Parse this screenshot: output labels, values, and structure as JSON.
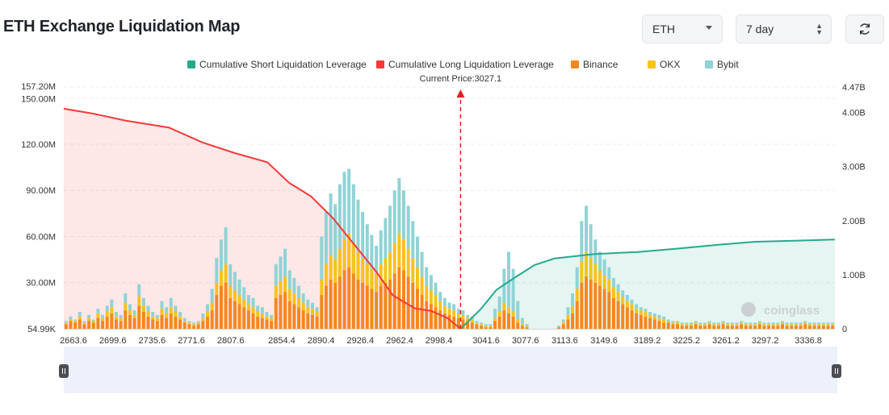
{
  "header": {
    "title": "ETH Exchange Liquidation Map",
    "asset_select": "ETH",
    "period_select": "7 day",
    "refresh_icon": "refresh-icon"
  },
  "chart_data": {
    "type": "bar",
    "current_price_label": "Current Price:3027.1",
    "current_price": 3027.1,
    "watermark": "coinglass",
    "legend": [
      {
        "name": "Cumulative Short Liquidation Leverage",
        "color": "#26a98b"
      },
      {
        "name": "Cumulative Long Liquidation Leverage",
        "color": "#f23a3a"
      },
      {
        "name": "Binance",
        "color": "#f7861e"
      },
      {
        "name": "OKX",
        "color": "#f7c21d"
      },
      {
        "name": "Bybit",
        "color": "#8fd3d6"
      }
    ],
    "x_tick_labels": [
      "2663.6",
      "2699.6",
      "2735.6",
      "2771.6",
      "2807.6",
      "2854.4",
      "2890.4",
      "2926.4",
      "2962.4",
      "2998.4",
      "3041.6",
      "3077.6",
      "3113.6",
      "3149.6",
      "3189.2",
      "3225.2",
      "3261.2",
      "3297.2",
      "3336.8"
    ],
    "xlim": [
      2663.6,
      3370
    ],
    "y_left_ticks": [
      "54.99K",
      "30.00M",
      "60.00M",
      "90.00M",
      "120.00M",
      "150.00M",
      "157.20M"
    ],
    "y_left_tick_values": [
      0,
      30,
      60,
      90,
      120,
      150,
      157.2
    ],
    "y_left_max": 157.2,
    "y_right_ticks": [
      "0",
      "1.00B",
      "2.00B",
      "3.00B",
      "4.00B",
      "4.47B"
    ],
    "y_right_tick_values": [
      0,
      1,
      2,
      3,
      4,
      4.47
    ],
    "y_right_max": 4.47,
    "series": [
      {
        "name": "Binance",
        "color": "#f7861e",
        "values": [
          3,
          5,
          4,
          6,
          3,
          5,
          4,
          7,
          5,
          8,
          10,
          6,
          5,
          12,
          9,
          7,
          15,
          11,
          8,
          6,
          5,
          9,
          7,
          10,
          8,
          6,
          4,
          3,
          2,
          3,
          5,
          8,
          12,
          22,
          28,
          30,
          20,
          18,
          16,
          14,
          12,
          10,
          8,
          7,
          6,
          5,
          20,
          22,
          24,
          18,
          16,
          14,
          12,
          10,
          9,
          8,
          22,
          28,
          32,
          30,
          34,
          38,
          40,
          36,
          32,
          30,
          28,
          26,
          24,
          28,
          30,
          32,
          36,
          40,
          38,
          34,
          30,
          26,
          22,
          18,
          16,
          14,
          12,
          10,
          9,
          8,
          7,
          6,
          5,
          4,
          3,
          2,
          1,
          1,
          5,
          8,
          12,
          10,
          8,
          4,
          2,
          1,
          0,
          0,
          0,
          0,
          0,
          0,
          1,
          3,
          6,
          10,
          18,
          30,
          34,
          32,
          30,
          28,
          26,
          24,
          20,
          18,
          16,
          14,
          12,
          10,
          9,
          8,
          7,
          6,
          5,
          4,
          4,
          3,
          3,
          2,
          2,
          2,
          3,
          2,
          2,
          3,
          2,
          2,
          3,
          2,
          2,
          2,
          3,
          2,
          2,
          2,
          3,
          2,
          2,
          2,
          2,
          3,
          2,
          2,
          2,
          2,
          3,
          2,
          2,
          2,
          2,
          2,
          2
        ]
      },
      {
        "name": "OKX",
        "color": "#f7c21d",
        "values": [
          1,
          1,
          1,
          2,
          1,
          2,
          1,
          3,
          2,
          3,
          4,
          2,
          2,
          5,
          3,
          2,
          6,
          4,
          3,
          2,
          2,
          4,
          3,
          4,
          3,
          2,
          1,
          1,
          1,
          1,
          2,
          3,
          5,
          8,
          10,
          12,
          8,
          7,
          6,
          5,
          4,
          4,
          3,
          3,
          2,
          2,
          8,
          9,
          10,
          8,
          7,
          6,
          5,
          4,
          4,
          3,
          10,
          14,
          16,
          15,
          18,
          20,
          22,
          20,
          18,
          16,
          14,
          13,
          12,
          14,
          16,
          18,
          20,
          22,
          20,
          18,
          16,
          14,
          12,
          10,
          9,
          8,
          6,
          5,
          4,
          4,
          3,
          3,
          2,
          2,
          1,
          1,
          1,
          1,
          2,
          3,
          5,
          4,
          3,
          2,
          1,
          1,
          0,
          0,
          0,
          0,
          0,
          0,
          0,
          1,
          3,
          5,
          8,
          14,
          16,
          14,
          12,
          10,
          9,
          8,
          7,
          6,
          5,
          4,
          4,
          3,
          3,
          3,
          2,
          2,
          2,
          2,
          1,
          1,
          1,
          1,
          1,
          1,
          1,
          1,
          1,
          1,
          1,
          1,
          1,
          1,
          1,
          1,
          1,
          1,
          1,
          1,
          1,
          1,
          1,
          1,
          1,
          1,
          1,
          1,
          1,
          1,
          1,
          1,
          1,
          1,
          1,
          1,
          1
        ]
      },
      {
        "name": "Bybit",
        "color": "#8fd3d6",
        "values": [
          1,
          2,
          1,
          3,
          1,
          2,
          1,
          3,
          2,
          4,
          5,
          3,
          2,
          6,
          4,
          3,
          8,
          5,
          4,
          3,
          2,
          5,
          4,
          6,
          4,
          3,
          2,
          1,
          1,
          1,
          3,
          5,
          9,
          16,
          20,
          24,
          14,
          12,
          10,
          8,
          6,
          6,
          4,
          4,
          3,
          2,
          14,
          16,
          18,
          12,
          10,
          8,
          6,
          5,
          4,
          3,
          28,
          34,
          40,
          36,
          42,
          44,
          42,
          38,
          34,
          30,
          26,
          22,
          18,
          22,
          26,
          30,
          34,
          36,
          32,
          28,
          24,
          20,
          16,
          12,
          10,
          8,
          6,
          5,
          4,
          4,
          3,
          3,
          2,
          2,
          1,
          1,
          1,
          1,
          6,
          10,
          22,
          36,
          28,
          12,
          4,
          1,
          0,
          0,
          0,
          0,
          0,
          0,
          1,
          2,
          5,
          8,
          14,
          26,
          30,
          22,
          16,
          12,
          10,
          8,
          6,
          5,
          4,
          4,
          3,
          3,
          2,
          2,
          2,
          2,
          2,
          2,
          1,
          1,
          1,
          1,
          1,
          1,
          1,
          1,
          1,
          1,
          1,
          1,
          1,
          1,
          1,
          1,
          1,
          1,
          1,
          1,
          1,
          1,
          1,
          1,
          1,
          1,
          1,
          1,
          1,
          1,
          1,
          1,
          1,
          1,
          1,
          1,
          1
        ]
      }
    ],
    "long_curve": [
      [
        2663.6,
        4.07
      ],
      [
        2690,
        3.98
      ],
      [
        2720,
        3.85
      ],
      [
        2760,
        3.72
      ],
      [
        2790,
        3.45
      ],
      [
        2820,
        3.25
      ],
      [
        2850,
        3.08
      ],
      [
        2870,
        2.7
      ],
      [
        2890,
        2.45
      ],
      [
        2910,
        2.05
      ],
      [
        2930,
        1.55
      ],
      [
        2950,
        1.05
      ],
      [
        2965,
        0.62
      ],
      [
        2985,
        0.38
      ],
      [
        3000,
        0.33
      ],
      [
        3015,
        0.2
      ],
      [
        3027.1,
        0.0
      ]
    ],
    "short_curve": [
      [
        3027.1,
        0.0
      ],
      [
        3045,
        0.35
      ],
      [
        3060,
        0.72
      ],
      [
        3077,
        0.95
      ],
      [
        3095,
        1.18
      ],
      [
        3113,
        1.3
      ],
      [
        3149,
        1.38
      ],
      [
        3189,
        1.42
      ],
      [
        3225,
        1.48
      ],
      [
        3261,
        1.55
      ],
      [
        3297,
        1.61
      ],
      [
        3336,
        1.63
      ],
      [
        3370,
        1.65
      ]
    ]
  }
}
